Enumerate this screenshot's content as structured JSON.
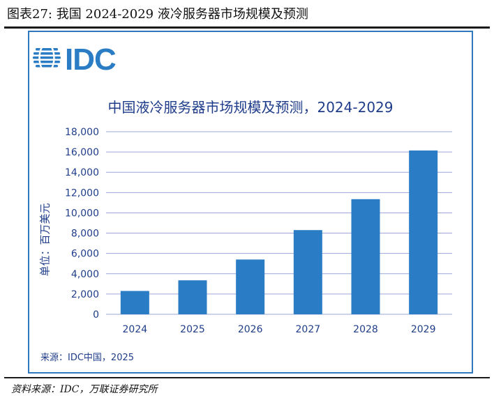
{
  "figure_title": "图表27:  我国 2024-2029 液冷服务器市场规模及预测",
  "logo_text": "IDC",
  "source_note": "来源：IDC中国，2025",
  "footer": "资料来源：IDC，万联证券研究所",
  "colors": {
    "bar": "#2a7dc4",
    "text": "#1f3d8a",
    "grid": "#9aa7d6",
    "frame": "#2e78bd"
  },
  "chart_data": {
    "type": "bar",
    "title": "中国液冷服务器市场规模及预测，2024-2029",
    "ylabel": "单位：百万美元",
    "xlabel": "",
    "categories": [
      "2024",
      "2025",
      "2026",
      "2027",
      "2028",
      "2029"
    ],
    "values": [
      2300,
      3350,
      5400,
      8300,
      11350,
      16150
    ],
    "ylim": [
      0,
      18000
    ],
    "yticks": [
      "0",
      "2,000",
      "4,000",
      "6,000",
      "8,000",
      "10,000",
      "12,000",
      "14,000",
      "16,000",
      "18,000"
    ],
    "grid": true
  }
}
